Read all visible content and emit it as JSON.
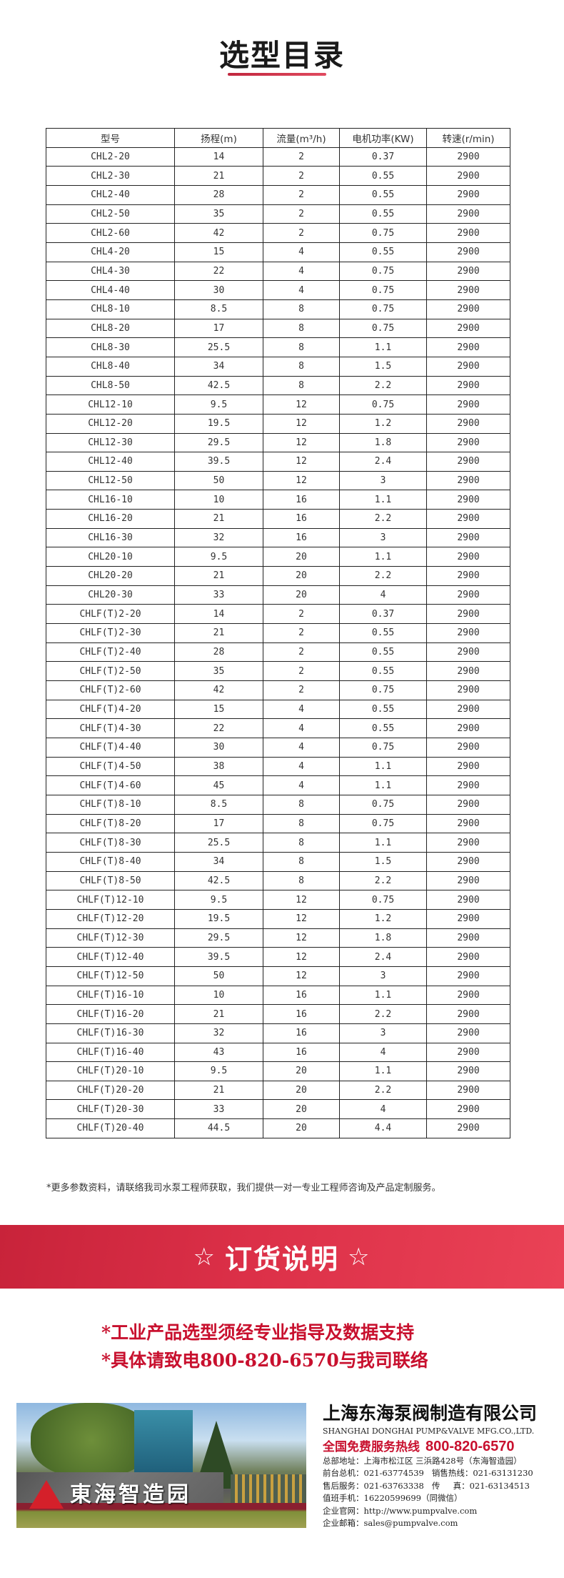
{
  "page": {
    "title": "选型目录",
    "accent_color": "#c8233a"
  },
  "table": {
    "headers": [
      "型号",
      "扬程(m)",
      "流量(m³/h)",
      "电机功率(KW)",
      "转速(r/min)"
    ],
    "rows": [
      [
        "CHL2-20",
        "14",
        "2",
        "0.37",
        "2900"
      ],
      [
        "CHL2-30",
        "21",
        "2",
        "0.55",
        "2900"
      ],
      [
        "CHL2-40",
        "28",
        "2",
        "0.55",
        "2900"
      ],
      [
        "CHL2-50",
        "35",
        "2",
        "0.55",
        "2900"
      ],
      [
        "CHL2-60",
        "42",
        "2",
        "0.75",
        "2900"
      ],
      [
        "CHL4-20",
        "15",
        "4",
        "0.55",
        "2900"
      ],
      [
        "CHL4-30",
        "22",
        "4",
        "0.75",
        "2900"
      ],
      [
        "CHL4-40",
        "30",
        "4",
        "0.75",
        "2900"
      ],
      [
        "CHL8-10",
        "8.5",
        "8",
        "0.75",
        "2900"
      ],
      [
        "CHL8-20",
        "17",
        "8",
        "0.75",
        "2900"
      ],
      [
        "CHL8-30",
        "25.5",
        "8",
        "1.1",
        "2900"
      ],
      [
        "CHL8-40",
        "34",
        "8",
        "1.5",
        "2900"
      ],
      [
        "CHL8-50",
        "42.5",
        "8",
        "2.2",
        "2900"
      ],
      [
        "CHL12-10",
        "9.5",
        "12",
        "0.75",
        "2900"
      ],
      [
        "CHL12-20",
        "19.5",
        "12",
        "1.2",
        "2900"
      ],
      [
        "CHL12-30",
        "29.5",
        "12",
        "1.8",
        "2900"
      ],
      [
        "CHL12-40",
        "39.5",
        "12",
        "2.4",
        "2900"
      ],
      [
        "CHL12-50",
        "50",
        "12",
        "3",
        "2900"
      ],
      [
        "CHL16-10",
        "10",
        "16",
        "1.1",
        "2900"
      ],
      [
        "CHL16-20",
        "21",
        "16",
        "2.2",
        "2900"
      ],
      [
        "CHL16-30",
        "32",
        "16",
        "3",
        "2900"
      ],
      [
        "CHL20-10",
        "9.5",
        "20",
        "1.1",
        "2900"
      ],
      [
        "CHL20-20",
        "21",
        "20",
        "2.2",
        "2900"
      ],
      [
        "CHL20-30",
        "33",
        "20",
        "4",
        "2900"
      ],
      [
        "CHLF(T)2-20",
        "14",
        "2",
        "0.37",
        "2900"
      ],
      [
        "CHLF(T)2-30",
        "21",
        "2",
        "0.55",
        "2900"
      ],
      [
        "CHLF(T)2-40",
        "28",
        "2",
        "0.55",
        "2900"
      ],
      [
        "CHLF(T)2-50",
        "35",
        "2",
        "0.55",
        "2900"
      ],
      [
        "CHLF(T)2-60",
        "42",
        "2",
        "0.75",
        "2900"
      ],
      [
        "CHLF(T)4-20",
        "15",
        "4",
        "0.55",
        "2900"
      ],
      [
        "CHLF(T)4-30",
        "22",
        "4",
        "0.55",
        "2900"
      ],
      [
        "CHLF(T)4-40",
        "30",
        "4",
        "0.75",
        "2900"
      ],
      [
        "CHLF(T)4-50",
        "38",
        "4",
        "1.1",
        "2900"
      ],
      [
        "CHLF(T)4-60",
        "45",
        "4",
        "1.1",
        "2900"
      ],
      [
        "CHLF(T)8-10",
        "8.5",
        "8",
        "0.75",
        "2900"
      ],
      [
        "CHLF(T)8-20",
        "17",
        "8",
        "0.75",
        "2900"
      ],
      [
        "CHLF(T)8-30",
        "25.5",
        "8",
        "1.1",
        "2900"
      ],
      [
        "CHLF(T)8-40",
        "34",
        "8",
        "1.5",
        "2900"
      ],
      [
        "CHLF(T)8-50",
        "42.5",
        "8",
        "2.2",
        "2900"
      ],
      [
        "CHLF(T)12-10",
        "9.5",
        "12",
        "0.75",
        "2900"
      ],
      [
        "CHLF(T)12-20",
        "19.5",
        "12",
        "1.2",
        "2900"
      ],
      [
        "CHLF(T)12-30",
        "29.5",
        "12",
        "1.8",
        "2900"
      ],
      [
        "CHLF(T)12-40",
        "39.5",
        "12",
        "2.4",
        "2900"
      ],
      [
        "CHLF(T)12-50",
        "50",
        "12",
        "3",
        "2900"
      ],
      [
        "CHLF(T)16-10",
        "10",
        "16",
        "1.1",
        "2900"
      ],
      [
        "CHLF(T)16-20",
        "21",
        "16",
        "2.2",
        "2900"
      ],
      [
        "CHLF(T)16-30",
        "32",
        "16",
        "3",
        "2900"
      ],
      [
        "CHLF(T)16-40",
        "43",
        "16",
        "4",
        "2900"
      ],
      [
        "CHLF(T)20-10",
        "9.5",
        "20",
        "1.1",
        "2900"
      ],
      [
        "CHLF(T)20-20",
        "21",
        "20",
        "2.2",
        "2900"
      ],
      [
        "CHLF(T)20-30",
        "33",
        "20",
        "4",
        "2900"
      ],
      [
        "CHLF(T)20-40",
        "44.5",
        "20",
        "4.4",
        "2900"
      ]
    ]
  },
  "note": "*更多参数资料，请联络我司水泵工程师获取，我们提供一对一专业工程师咨询及产品定制服务。",
  "order": {
    "star_icon": "☆",
    "title": "订货说明",
    "lines": [
      "*工业产品选型须经专业指导及数据支持",
      "*具体请致电800-820-6570与我司联络"
    ]
  },
  "company": {
    "sign_text": "東海智造园",
    "name": "上海东海泵阀制造有限公司",
    "name_en": "SHANGHAI DONGHAI PUMP&VALVE MFG.CO.,LTD.",
    "hotline_label": "全国免费服务热线",
    "hotline": "800-820-6570",
    "contacts": [
      "总部地址：上海市松江区 三浜路428号（东海智造园）",
      "前台总机：021-63774539   销售热线：021-63131230",
      "售后服务：021-63763338   传     真：021-63134513",
      "值班手机：16220599699（同微信）",
      "企业官网：http://www.pumpvalve.com",
      "企业邮箱：sales@pumpvalve.com"
    ]
  }
}
